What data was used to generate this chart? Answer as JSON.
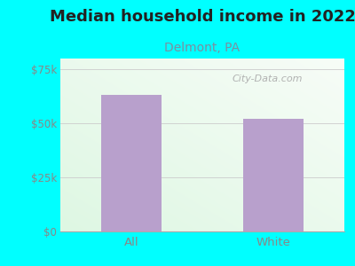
{
  "title": "Median household income in 2022",
  "subtitle": "Delmont, PA",
  "categories": [
    "All",
    "White"
  ],
  "values": [
    63000,
    52000
  ],
  "bar_color": "#b8a0cc",
  "bar_width": 0.42,
  "ylim": [
    0,
    80000
  ],
  "yticks": [
    0,
    25000,
    50000,
    75000
  ],
  "ytick_labels": [
    "$0",
    "$25k",
    "$50k",
    "$75k"
  ],
  "background_outer": "#00ffff",
  "title_fontsize": 13,
  "subtitle_fontsize": 10,
  "tick_fontsize": 8.5,
  "title_color": "#222222",
  "subtitle_color": "#7a8fa0",
  "tick_color": "#888888",
  "watermark_text": "City-Data.com",
  "watermark_color": "#aaaaaa",
  "grid_color": "#cccccc",
  "bottom_line_color": "#aaaaaa"
}
